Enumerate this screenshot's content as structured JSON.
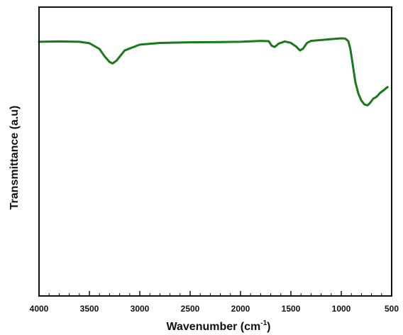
{
  "chart_data": {
    "type": "line",
    "title": "",
    "xlabel": "Wavenumber (cm",
    "xlabel_superscript": "-1",
    "xlabel_suffix": ")",
    "ylabel": "Transmittance (a.u)",
    "xlim": [
      4000,
      500
    ],
    "x_reversed": true,
    "ylim": [
      0,
      100
    ],
    "y_ticks_labeled": false,
    "grid": false,
    "legend": "none",
    "x_ticks": [
      4000,
      3500,
      3000,
      2500,
      2000,
      1500,
      1000,
      500
    ],
    "x_tick_labels": [
      "4000",
      "3500",
      "3000",
      "2500",
      "2000",
      "1500",
      "1000",
      "500"
    ],
    "series": [
      {
        "color": "#1a7a1a",
        "x": [
          4000,
          3800,
          3600,
          3500,
          3400,
          3350,
          3300,
          3270,
          3230,
          3150,
          3000,
          2800,
          2500,
          2200,
          2000,
          1800,
          1720,
          1690,
          1660,
          1620,
          1560,
          1500,
          1450,
          1410,
          1380,
          1340,
          1300,
          1200,
          1100,
          1000,
          960,
          930,
          910,
          890,
          860,
          830,
          800,
          770,
          740,
          720,
          700,
          680,
          660,
          640,
          620,
          600,
          580,
          560,
          540
        ],
        "y": [
          88,
          88.1,
          88,
          87.5,
          85.5,
          83,
          81,
          80.5,
          81.5,
          85,
          87,
          87.6,
          87.8,
          87.9,
          88,
          88.3,
          88.2,
          86.6,
          86.2,
          87.4,
          88.1,
          87.6,
          86.4,
          85,
          85.6,
          87.6,
          88.3,
          88.6,
          88.9,
          89.2,
          89.1,
          88.2,
          85.5,
          81,
          74,
          70,
          67.6,
          66.3,
          66,
          66.6,
          67.5,
          68.4,
          68.7,
          69.3,
          70.1,
          70.7,
          71.2,
          71.8,
          72.3
        ]
      }
    ]
  }
}
